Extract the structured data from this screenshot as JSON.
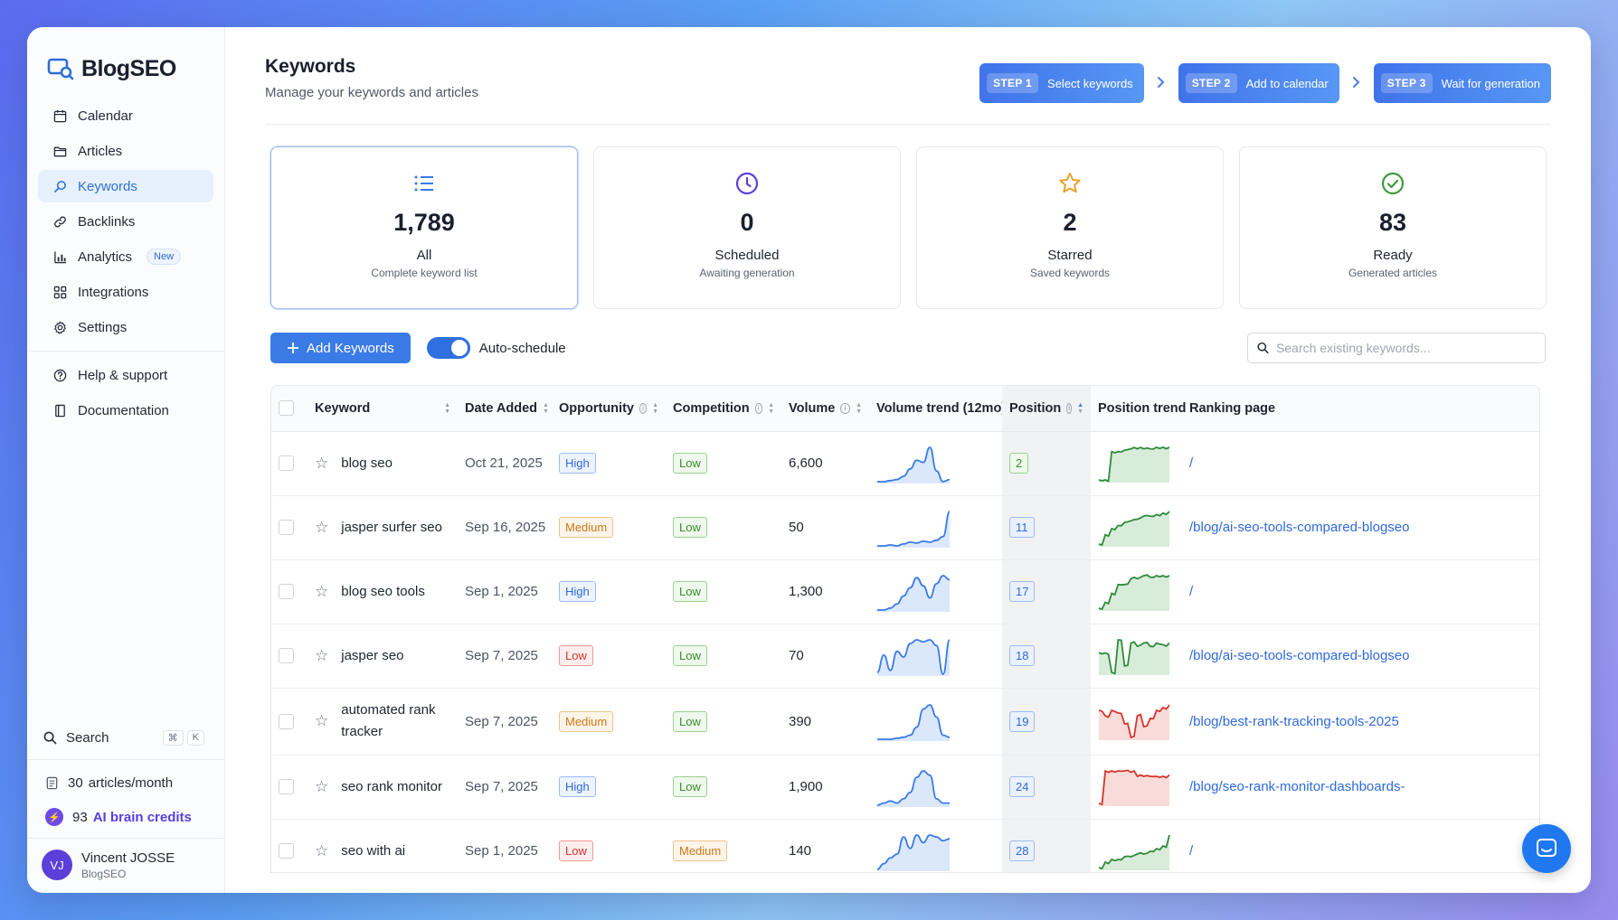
{
  "app": {
    "name": "BlogSEO"
  },
  "sidebar": {
    "items": [
      {
        "label": "Calendar",
        "icon": "calendar-icon"
      },
      {
        "label": "Articles",
        "icon": "folder-icon"
      },
      {
        "label": "Keywords",
        "icon": "search-icon",
        "active": true
      },
      {
        "label": "Backlinks",
        "icon": "link-icon"
      },
      {
        "label": "Analytics",
        "icon": "bar-chart-icon",
        "badge": "New"
      },
      {
        "label": "Integrations",
        "icon": "grid-icon"
      },
      {
        "label": "Settings",
        "icon": "gear-icon"
      }
    ],
    "secondary": [
      {
        "label": "Help & support",
        "icon": "help-icon"
      },
      {
        "label": "Documentation",
        "icon": "book-icon"
      }
    ],
    "search_label": "Search",
    "shortcut": [
      "⌘",
      "K"
    ],
    "articles_count": "30",
    "articles_unit": "articles/month",
    "credits_count": "93",
    "credits_label": "AI brain credits",
    "user": {
      "initials": "VJ",
      "name": "Vincent JOSSE",
      "org": "BlogSEO"
    }
  },
  "header": {
    "title": "Keywords",
    "subtitle": "Manage your keywords and articles",
    "steps": [
      {
        "num": "STEP 1",
        "label": "Select keywords"
      },
      {
        "num": "STEP 2",
        "label": "Add to calendar"
      },
      {
        "num": "STEP 3",
        "label": "Wait for generation"
      }
    ]
  },
  "cards": [
    {
      "value": "1,789",
      "label": "All",
      "sub": "Complete keyword list",
      "icon": "list-icon",
      "color": "#3a7be6"
    },
    {
      "value": "0",
      "label": "Scheduled",
      "sub": "Awaiting generation",
      "icon": "clock-icon",
      "color": "#5b3fd8"
    },
    {
      "value": "2",
      "label": "Starred",
      "sub": "Saved keywords",
      "icon": "star-icon",
      "color": "#e8a22b"
    },
    {
      "value": "83",
      "label": "Ready",
      "sub": "Generated articles",
      "icon": "check-circle-icon",
      "color": "#3d9b3a"
    }
  ],
  "toolbar": {
    "add_label": "Add Keywords",
    "toggle_label": "Auto-schedule",
    "toggle_on": true,
    "search_placeholder": "Search existing keywords..."
  },
  "table": {
    "columns": [
      "Keyword",
      "Date Added",
      "Opportunity",
      "Competition",
      "Volume",
      "Volume trend (12mo)",
      "Position",
      "Position trend",
      "Ranking page"
    ],
    "rows": [
      {
        "keyword": "blog seo",
        "date": "Oct 21, 2025",
        "opportunity": "High",
        "competition": "Low",
        "volume": "6,600",
        "position": "2",
        "vol_trend": [
          10,
          10,
          11,
          12,
          15,
          22,
          30,
          28,
          42,
          20,
          10,
          12
        ],
        "pos_trend": [
          30,
          30,
          10,
          10,
          9,
          8,
          8,
          8,
          8,
          7,
          7,
          7
        ],
        "pos_color": "green",
        "page": "/"
      },
      {
        "keyword": "jasper surfer seo",
        "date": "Sep 16, 2025",
        "opportunity": "Medium",
        "competition": "Low",
        "volume": "50",
        "position": "11",
        "vol_trend": [
          8,
          8,
          9,
          8,
          10,
          12,
          11,
          13,
          12,
          14,
          18,
          45
        ],
        "pos_trend": [
          30,
          24,
          20,
          18,
          16,
          15,
          14,
          12,
          12,
          11,
          10,
          9
        ],
        "pos_color": "green",
        "page": "/blog/ai-seo-tools-compared-blogseo"
      },
      {
        "keyword": "blog seo tools",
        "date": "Sep 1, 2025",
        "opportunity": "High",
        "competition": "Low",
        "volume": "1,300",
        "position": "17",
        "vol_trend": [
          8,
          8,
          10,
          14,
          22,
          30,
          40,
          32,
          20,
          34,
          42,
          38
        ],
        "pos_trend": [
          30,
          26,
          20,
          14,
          14,
          10,
          10,
          8,
          9,
          8,
          8,
          8
        ],
        "pos_color": "green",
        "page": "/"
      },
      {
        "keyword": "jasper seo",
        "date": "Sep 7, 2025",
        "opportunity": "Low",
        "competition": "Low",
        "volume": "70",
        "position": "18",
        "vol_trend": [
          10,
          28,
          12,
          32,
          26,
          40,
          44,
          42,
          44,
          38,
          8,
          44
        ],
        "pos_trend": [
          18,
          18,
          30,
          10,
          26,
          12,
          14,
          12,
          14,
          12,
          13,
          12
        ],
        "pos_color": "green",
        "page": "/blog/ai-seo-tools-compared-blogseo"
      },
      {
        "keyword": "automated rank tracker",
        "date": "Sep 7, 2025",
        "opportunity": "Medium",
        "competition": "Low",
        "volume": "390",
        "position": "19",
        "vol_trend": [
          8,
          8,
          8,
          9,
          10,
          12,
          20,
          38,
          42,
          30,
          12,
          10
        ],
        "pos_trend": [
          10,
          14,
          10,
          12,
          20,
          30,
          14,
          22,
          16,
          10,
          8,
          6
        ],
        "pos_color": "red",
        "page": "/blog/best-rank-tracking-tools-2025"
      },
      {
        "keyword": "seo rank monitor",
        "date": "Sep 7, 2025",
        "opportunity": "High",
        "competition": "Low",
        "volume": "1,900",
        "position": "24",
        "vol_trend": [
          8,
          10,
          12,
          10,
          14,
          20,
          34,
          40,
          36,
          14,
          10,
          10
        ],
        "pos_trend": [
          30,
          6,
          6,
          6,
          6,
          7,
          10,
          10,
          10,
          10,
          10,
          9
        ],
        "pos_color": "red",
        "page": "/blog/seo-rank-monitor-dashboards-"
      },
      {
        "keyword": "seo with ai",
        "date": "Sep 1, 2025",
        "opportunity": "Low",
        "competition": "Medium",
        "volume": "140",
        "position": "28",
        "vol_trend": [
          8,
          14,
          20,
          24,
          42,
          30,
          44,
          36,
          44,
          42,
          38,
          40
        ],
        "pos_trend": [
          30,
          26,
          24,
          24,
          22,
          22,
          20,
          20,
          18,
          16,
          14,
          6
        ],
        "pos_color": "green",
        "page": "/"
      }
    ]
  }
}
